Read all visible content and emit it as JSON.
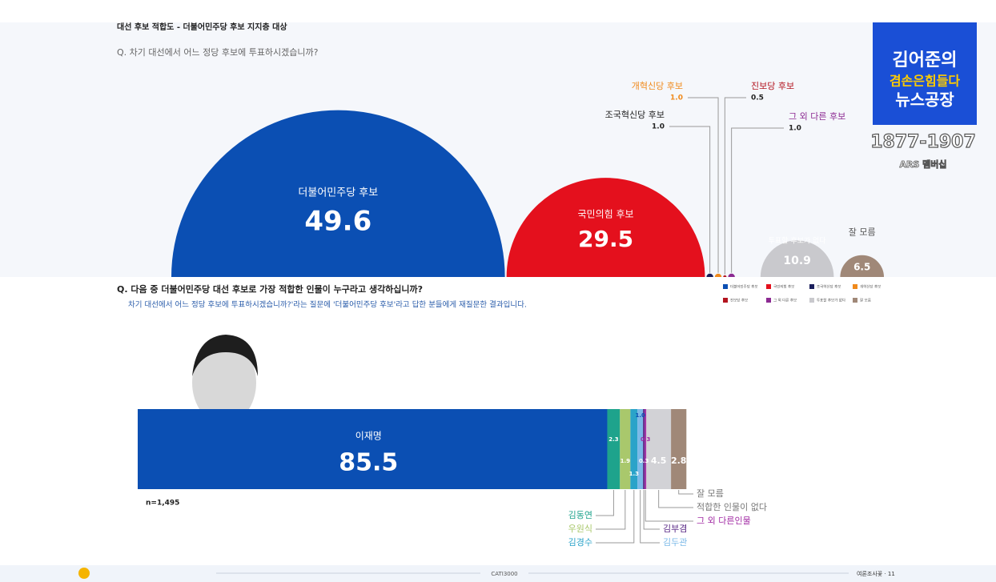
{
  "header": "대선 후보 적합도 - 더불어민주당 후보 지지층 대상",
  "logo": {
    "line1": "김어준의",
    "line2": "겸손은힘들다",
    "line3": "뉴스공장",
    "phone": "1877-1907",
    "caption": "ARS 멤버십"
  },
  "footer": {
    "center": "CATI3000",
    "right": "여론조사꽃 · 11"
  },
  "chart_data": [
    {
      "type": "semicircle",
      "title": "Q. 차기 대선에서 어느 정당 후보에 투표하시겠습니까?",
      "categories": [
        "더불어민주당 후보",
        "국민의힘 후보",
        "조국혁신당 후보",
        "개혁신당 후보",
        "진보당 후보",
        "그 외 다른 후보",
        "투표할 후보가 없다",
        "잘 모름"
      ],
      "values": [
        49.6,
        29.5,
        1.0,
        1.0,
        0.5,
        1.0,
        10.9,
        6.5
      ],
      "value_labels": [
        "49.6",
        "29.5",
        "1.0",
        "1.0",
        "0.5",
        "1.0",
        "10.9",
        "6.5"
      ],
      "colors": [
        "#0b4fb3",
        "#e4101d",
        "#1b1f5c",
        "#f08a1c",
        "#b3141f",
        "#8c2a92",
        "#c9c9cd",
        "#a08878"
      ]
    },
    {
      "type": "stacked_bar",
      "title": "Q. 다음 중 더불어민주당 대선 후보로 가장 적합한 인물이 누구라고 생각하십니까?",
      "subtitle": "차기 대선에서 어느 정당 후보에 투표하시겠습니까?'라는 질문에 '더불어민주당 후보'라고 답한 분들에게 재질문한 결과입니다.",
      "annotation": "n=1,495",
      "categories": [
        "이재명",
        "김동연",
        "우원식",
        "김경수",
        "김두관",
        "김부겸",
        "그 외 다른인물",
        "적합한 인물이 없다",
        "잘 모름"
      ],
      "values": [
        85.5,
        2.3,
        1.9,
        1.3,
        1.0,
        0.3,
        0.3,
        4.5,
        2.8
      ],
      "value_labels": [
        "85.5",
        "2.3",
        "1.9",
        "1.3",
        "1.0",
        "0.3",
        "0.3",
        "4.5",
        "2.8"
      ],
      "colors": [
        "#0b4fb3",
        "#1ea38c",
        "#a9c86c",
        "#2aa3c9",
        "#7bb9e8",
        "#5a2a86",
        "#a12aa3",
        "#d2d2d6",
        "#a08878"
      ],
      "xlim": [
        0,
        100
      ]
    }
  ]
}
